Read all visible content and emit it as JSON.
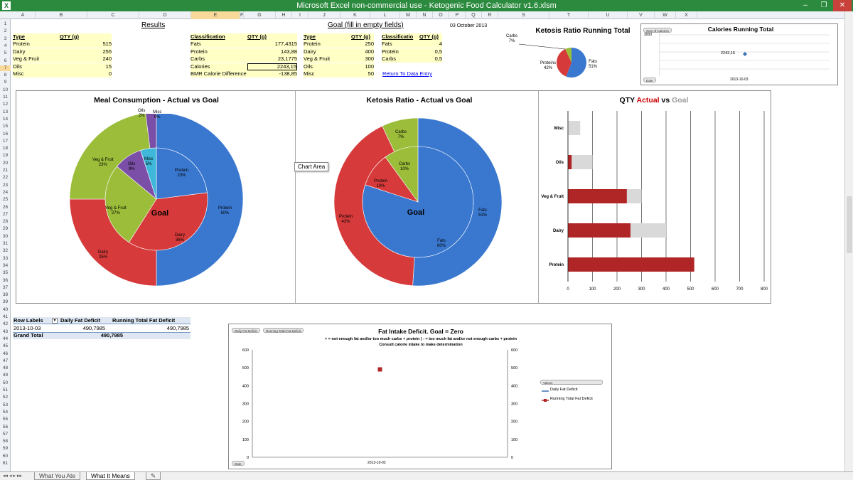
{
  "window": {
    "title": "Microsoft Excel non-commercial use - Ketogenic Food Calculator v1.6.xlsm",
    "app_icon": "X",
    "min": "–",
    "max": "❐",
    "close": "✕"
  },
  "columns": [
    "A",
    "B",
    "C",
    "D",
    "E",
    "F",
    "G",
    "H",
    "I",
    "J",
    "K",
    "L",
    "M",
    "N",
    "O",
    "P",
    "Q",
    "R",
    "S",
    "T",
    "U",
    "V",
    "W",
    "X"
  ],
  "rows": [
    "1",
    "2",
    "3",
    "4",
    "5",
    "6",
    "7",
    "8",
    "9",
    "10",
    "11",
    "12",
    "13",
    "14",
    "15",
    "16",
    "17",
    "18",
    "19",
    "20",
    "21",
    "22",
    "23",
    "24",
    "25",
    "26",
    "27",
    "28",
    "29",
    "30",
    "31",
    "32",
    "33",
    "34",
    "35",
    "36",
    "37",
    "38",
    "39",
    "40",
    "41",
    "42",
    "43",
    "44",
    "45",
    "46",
    "47",
    "48",
    "49",
    "50",
    "51",
    "52",
    "53",
    "54",
    "55",
    "56",
    "57",
    "58",
    "59",
    "60",
    "61"
  ],
  "headings": {
    "results": "Results",
    "goal": "Goal (fill in empty fields)",
    "date": "03 October 2013"
  },
  "actual_table": {
    "headers": [
      "Type",
      "QTY (g)"
    ],
    "rows": [
      [
        "Protein",
        "515"
      ],
      [
        "Dairy",
        "255"
      ],
      [
        "Veg & Fruit",
        "240"
      ],
      [
        "Oils",
        "15"
      ],
      [
        "Misc",
        "0"
      ]
    ]
  },
  "classification_table": {
    "headers": [
      "Classification",
      "QTY (g)"
    ],
    "rows": [
      [
        "Fats",
        "177,4315"
      ],
      [
        "Protein",
        "143,88"
      ],
      [
        "Carbs",
        "23,1775"
      ],
      [
        "Calories",
        "2243,15"
      ],
      [
        "BMR Calorie Difference",
        "-138,85"
      ]
    ]
  },
  "goal_table": {
    "headers": [
      "Type",
      "QTY (g)"
    ],
    "rows": [
      [
        "Protein",
        "250"
      ],
      [
        "Dairy",
        "400"
      ],
      [
        "Veg & Fruit",
        "300"
      ],
      [
        "Oils",
        "100"
      ],
      [
        "Misc",
        "50"
      ]
    ]
  },
  "goal_class_table": {
    "headers": [
      "Classificatio",
      "QTY (g)"
    ],
    "rows": [
      [
        "Fats",
        "4"
      ],
      [
        "Protein",
        "0,5"
      ],
      [
        "Carbs",
        "0,5"
      ]
    ]
  },
  "return_link": "Return To Data Entry",
  "keto_small": {
    "title": "Ketosis Ratio Running Total",
    "labels": {
      "carbs": "Carbs",
      "carbs_pct": "7%",
      "proteins": "Proteins",
      "proteins_pct": "42%",
      "fats": "Fats",
      "fats_pct": "51%"
    }
  },
  "cal_running": {
    "title": "Calories Running Total",
    "pill_top": "Sum of Calories",
    "pill_bottom": "Date",
    "y_top": "3000",
    "point_label": "2243,15",
    "x_label": "2013-10-03"
  },
  "meal": {
    "title": "Meal Consumption - Actual vs Goal",
    "center": "Goal",
    "outer": [
      {
        "name": "Protein",
        "pct": "50%"
      },
      {
        "name": "Dairy",
        "pct": "25%"
      },
      {
        "name": "Veg & Fruit",
        "pct": "23%"
      },
      {
        "name": "Oils",
        "pct": "2%"
      },
      {
        "name": "Misc",
        "pct": "0%"
      }
    ],
    "inner": [
      {
        "name": "Protein",
        "pct": "23%"
      },
      {
        "name": "Dairy",
        "pct": "36%"
      },
      {
        "name": "Veg & Fruit",
        "pct": "27%"
      },
      {
        "name": "Oils",
        "pct": "9%"
      },
      {
        "name": "Misc",
        "pct": "5%"
      }
    ]
  },
  "keto_big": {
    "title": "Ketosis Ratio - Actual vs Goal",
    "center": "Goal",
    "outer": [
      {
        "name": "Fats",
        "pct": "51%"
      },
      {
        "name": "Protein",
        "pct": "42%"
      },
      {
        "name": "Carbs",
        "pct": "7%"
      }
    ],
    "inner": [
      {
        "name": "Fats",
        "pct": "80%"
      },
      {
        "name": "Protein",
        "pct": "10%"
      },
      {
        "name": "Carbs",
        "pct": "10%"
      }
    ],
    "tooltip": "Chart Area"
  },
  "qty": {
    "title_prefix": "QTY ",
    "title_actual": "Actual",
    "title_vs": " vs ",
    "title_goal": "Goal"
  },
  "pivot": {
    "headers": [
      "Row Labels",
      "Daily Fat Deficit",
      "Running Total Fat Deficit"
    ],
    "row": [
      "2013-10-03",
      "490,7985",
      "490,7985"
    ],
    "total": [
      "Grand Total",
      "490,7985"
    ]
  },
  "fat": {
    "title": "Fat Intake Deficit. Goal = Zero",
    "sub1": "+ = not enough fat and/or too much carbs + protein  |  - = too much fat and/or not enough carbs + protein",
    "sub2": "Consult calorie intake to make determination",
    "pill1": "Daily Fat Deficit",
    "pill2": "Running Total Fat Deficit",
    "pill3": "Date",
    "legend_pill": "Values",
    "legend": [
      "Daily Fat Deficit",
      "Running Total Fat Deficit"
    ],
    "x_label": "2013-10-03"
  },
  "tabs": {
    "nav": "◂◂ ◂ ▸ ▸▸",
    "tab1": "What You Ate",
    "tab2": "What It Means",
    "new": "✎"
  },
  "colors": {
    "protein": "#3a78d0",
    "dairy": "#d63a3a",
    "veg": "#9bbd3a",
    "oils": "#7b4fa7",
    "misc": "#3fb7d9",
    "actual_bar": "#b02525",
    "goal_bar": "#d9d9d9",
    "title_red": "#cc0000",
    "title_grey": "#9a9a9a",
    "excel_green": "#2b8a3e"
  },
  "chart_data": [
    {
      "type": "pie",
      "title": "Meal Consumption - Actual vs Goal",
      "series": [
        {
          "name": "Actual",
          "categories": [
            "Protein",
            "Dairy",
            "Veg & Fruit",
            "Oils",
            "Misc"
          ],
          "values": [
            50,
            25,
            23,
            2,
            0
          ]
        },
        {
          "name": "Goal",
          "categories": [
            "Protein",
            "Dairy",
            "Veg & Fruit",
            "Oils",
            "Misc"
          ],
          "values": [
            23,
            36,
            27,
            9,
            5
          ]
        }
      ]
    },
    {
      "type": "pie",
      "title": "Ketosis Ratio - Actual vs Goal",
      "series": [
        {
          "name": "Actual",
          "categories": [
            "Fats",
            "Protein",
            "Carbs"
          ],
          "values": [
            51,
            42,
            7
          ]
        },
        {
          "name": "Goal",
          "categories": [
            "Fats",
            "Protein",
            "Carbs"
          ],
          "values": [
            80,
            10,
            10
          ]
        }
      ]
    },
    {
      "type": "pie",
      "title": "Ketosis Ratio Running Total",
      "categories": [
        "Fats",
        "Proteins",
        "Carbs"
      ],
      "values": [
        51,
        42,
        7
      ]
    },
    {
      "type": "bar",
      "orientation": "horizontal",
      "title": "QTY Actual vs Goal",
      "categories": [
        "Misc",
        "Oils",
        "Veg & Fruit",
        "Dairy",
        "Protein"
      ],
      "series": [
        {
          "name": "Actual",
          "values": [
            0,
            15,
            240,
            255,
            515
          ]
        },
        {
          "name": "Goal",
          "values": [
            50,
            100,
            300,
            400,
            250
          ]
        }
      ],
      "xlim": [
        0,
        800
      ],
      "xticks": [
        "0",
        "100",
        "200",
        "300",
        "400",
        "500",
        "600",
        "700",
        "800"
      ]
    },
    {
      "type": "line",
      "title": "Calories Running Total",
      "x": [
        "2013-10-03"
      ],
      "series": [
        {
          "values": [
            2243.15
          ]
        }
      ],
      "ylim": [
        0,
        3000
      ]
    },
    {
      "type": "line",
      "title": "Fat Intake Deficit. Goal = Zero",
      "x": [
        "2013-10-03"
      ],
      "series": [
        {
          "name": "Daily Fat Deficit",
          "values": [
            490.7985
          ]
        },
        {
          "name": "Running Total Fat Deficit",
          "values": [
            490.7985
          ]
        }
      ],
      "ylim": [
        0,
        600
      ],
      "yticks": [
        "0",
        "100",
        "200",
        "300",
        "400",
        "500",
        "600"
      ]
    }
  ]
}
